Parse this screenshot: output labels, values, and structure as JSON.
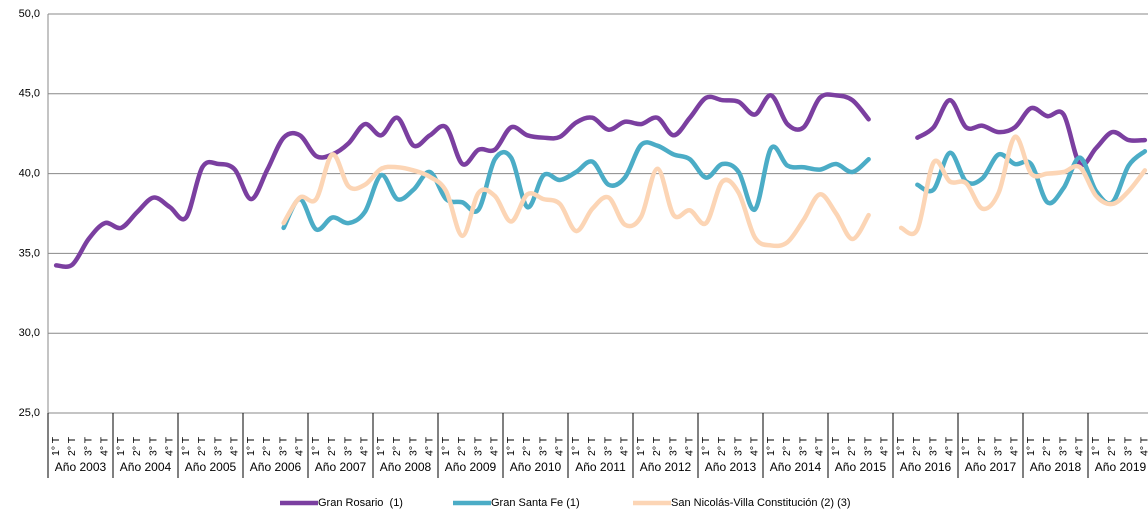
{
  "chart_data": {
    "type": "line",
    "categories": [
      "1° T",
      "2° T",
      "3° T",
      "4° T",
      "1° T",
      "2° T",
      "3° T",
      "4° T",
      "1° T",
      "2° T",
      "3° T",
      "4° T",
      "1° T",
      "2° T",
      "3° T",
      "4° T",
      "1° T",
      "2° T",
      "3° T",
      "4° T",
      "1° T",
      "2° T",
      "3° T",
      "4° T",
      "1° T",
      "2° T",
      "3° T",
      "4° T",
      "1° T",
      "2° T",
      "3° T",
      "4° T",
      "1° T",
      "2° T",
      "3° T",
      "4° T",
      "1° T",
      "2° T",
      "3° T",
      "4° T",
      "1° T",
      "2° T",
      "3° T",
      "4° T",
      "1° T",
      "2° T",
      "3° T",
      "4° T",
      "1° T",
      "2° T",
      "3° T",
      "4° T",
      "1° T",
      "2° T",
      "3° T",
      "4° T",
      "1° T",
      "2° T",
      "3° T",
      "4° T",
      "1° T",
      "2° T",
      "3° T",
      "4° T",
      "1° T",
      "2° T",
      "3° T",
      "4° T"
    ],
    "groups": [
      "Año 2003",
      "Año 2004",
      "Año 2005",
      "Año 2006",
      "Año 2007",
      "Año 2008",
      "Año 2009",
      "Año 2010",
      "Año 2011",
      "Año 2012",
      "Año 2013",
      "Año 2014",
      "Año 2015",
      "Año 2016",
      "Año 2017",
      "Año 2018",
      "Año 2019"
    ],
    "series": [
      {
        "name": "Gran Rosario  (1)",
        "color": "#7b3fa0",
        "values": [
          34.25,
          34.3,
          35.9,
          36.9,
          36.6,
          37.6,
          38.5,
          37.9,
          37.25,
          40.4,
          40.6,
          40.25,
          38.4,
          40.25,
          42.25,
          42.4,
          41.1,
          41.2,
          41.9,
          43.1,
          42.4,
          43.5,
          41.75,
          42.4,
          42.9,
          40.6,
          41.5,
          41.5,
          42.9,
          42.4,
          42.25,
          42.3,
          43.2,
          43.5,
          42.75,
          43.25,
          43.1,
          43.5,
          42.4,
          43.5,
          44.75,
          44.6,
          44.5,
          43.7,
          44.9,
          43.1,
          42.9,
          44.75,
          44.9,
          44.6,
          43.4,
          null,
          null,
          42.25,
          42.9,
          44.6,
          42.9,
          43.0,
          42.6,
          42.9,
          44.1,
          43.6,
          43.7,
          40.6,
          41.6,
          42.6,
          42.1,
          42.1
        ]
      },
      {
        "name": "Gran Santa Fe (1)",
        "color": "#4bacc6",
        "values": [
          null,
          null,
          null,
          null,
          null,
          null,
          null,
          null,
          null,
          null,
          null,
          null,
          null,
          null,
          36.6,
          38.4,
          36.5,
          37.25,
          36.9,
          37.6,
          39.9,
          38.4,
          39.0,
          40.1,
          38.4,
          38.2,
          37.75,
          40.9,
          41.0,
          37.9,
          39.9,
          39.6,
          40.1,
          40.75,
          39.3,
          39.75,
          41.8,
          41.75,
          41.2,
          40.9,
          39.75,
          40.6,
          40.1,
          37.75,
          41.6,
          40.5,
          40.4,
          40.25,
          40.6,
          40.1,
          40.9,
          null,
          null,
          39.3,
          39.0,
          41.3,
          39.5,
          39.7,
          41.2,
          40.6,
          40.6,
          38.2,
          39.1,
          41.0,
          38.9,
          38.2,
          40.5,
          41.4
        ]
      },
      {
        "name": "San Nicolás-Villa Constitución (2) (3)",
        "color": "#fcd5b5",
        "values": [
          null,
          null,
          null,
          null,
          null,
          null,
          null,
          null,
          null,
          null,
          null,
          null,
          null,
          null,
          36.9,
          38.5,
          38.4,
          41.2,
          39.2,
          39.3,
          40.3,
          40.4,
          40.2,
          39.8,
          38.9,
          36.1,
          38.8,
          38.6,
          37.0,
          38.7,
          38.4,
          38.1,
          36.4,
          37.8,
          38.5,
          36.8,
          37.3,
          40.3,
          37.4,
          37.7,
          36.9,
          39.5,
          38.8,
          36.0,
          35.5,
          35.7,
          37.1,
          38.7,
          37.5,
          35.9,
          37.4,
          null,
          36.6,
          36.5,
          40.7,
          39.5,
          39.4,
          37.8,
          38.8,
          42.3,
          40.0,
          40.0,
          40.1,
          40.4,
          38.6,
          38.1,
          38.9,
          40.2
        ]
      }
    ],
    "ylim": [
      25,
      50
    ],
    "yticks": [
      {
        "value": 25,
        "label": "25,0"
      },
      {
        "value": 30,
        "label": "30,0"
      },
      {
        "value": 35,
        "label": "35,0"
      },
      {
        "value": 40,
        "label": "40,0"
      },
      {
        "value": 45,
        "label": "45,0"
      },
      {
        "value": 50,
        "label": "50,0"
      }
    ],
    "grid": true,
    "legend": "bottom"
  }
}
